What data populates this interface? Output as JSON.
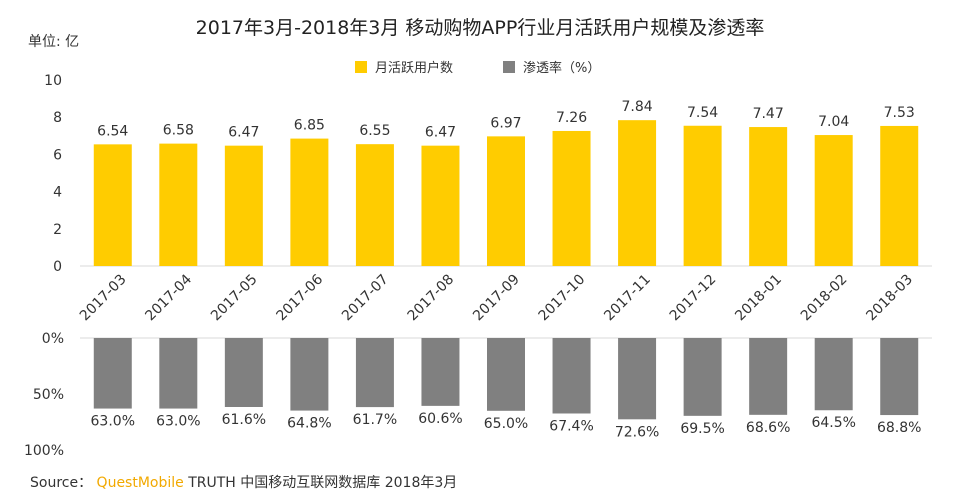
{
  "chart_data": {
    "type": "bar",
    "title": "2017年3月-2018年3月 移动购物APP行业月活跃用户规模及渗透率",
    "unit_label": "单位: 亿",
    "categories": [
      "2017-03",
      "2017-04",
      "2017-05",
      "2017-06",
      "2017-07",
      "2017-08",
      "2017-09",
      "2017-10",
      "2017-11",
      "2017-12",
      "2018-01",
      "2018-02",
      "2018-03"
    ],
    "series": [
      {
        "name": "月活跃用户数",
        "color": "#FFCC00",
        "values": [
          6.54,
          6.58,
          6.47,
          6.85,
          6.55,
          6.47,
          6.97,
          7.26,
          7.84,
          7.54,
          7.47,
          7.04,
          7.53
        ],
        "labels": [
          "6.54",
          "6.58",
          "6.47",
          "6.85",
          "6.55",
          "6.47",
          "6.97",
          "7.26",
          "7.84",
          "7.54",
          "7.47",
          "7.04",
          "7.53"
        ]
      },
      {
        "name": "渗透率（%）",
        "color": "#808080",
        "values": [
          63.0,
          63.0,
          61.6,
          64.8,
          61.7,
          60.6,
          65.0,
          67.4,
          72.6,
          69.5,
          68.6,
          64.5,
          68.8
        ],
        "labels": [
          "63.0%",
          "63.0%",
          "61.6%",
          "64.8%",
          "61.7%",
          "60.6%",
          "65.0%",
          "67.4%",
          "72.6%",
          "69.5%",
          "68.6%",
          "64.5%",
          "68.8%"
        ]
      }
    ],
    "top_axis": {
      "ylim": [
        0,
        10
      ],
      "ticks": [
        "0",
        "2",
        "4",
        "6",
        "8",
        "10"
      ],
      "tick_values": [
        0,
        2,
        4,
        6,
        8,
        10
      ]
    },
    "bottom_axis": {
      "ylim": [
        0,
        100
      ],
      "ticks": [
        "0%",
        "50%",
        "100%"
      ],
      "tick_values": [
        0,
        50,
        100
      ]
    },
    "legend_position": "top-center"
  },
  "source": {
    "prefix": "Source：",
    "brand": "QuestMobile",
    "rest": "TRUTH 中国移动互联网数据库 2018年3月"
  }
}
